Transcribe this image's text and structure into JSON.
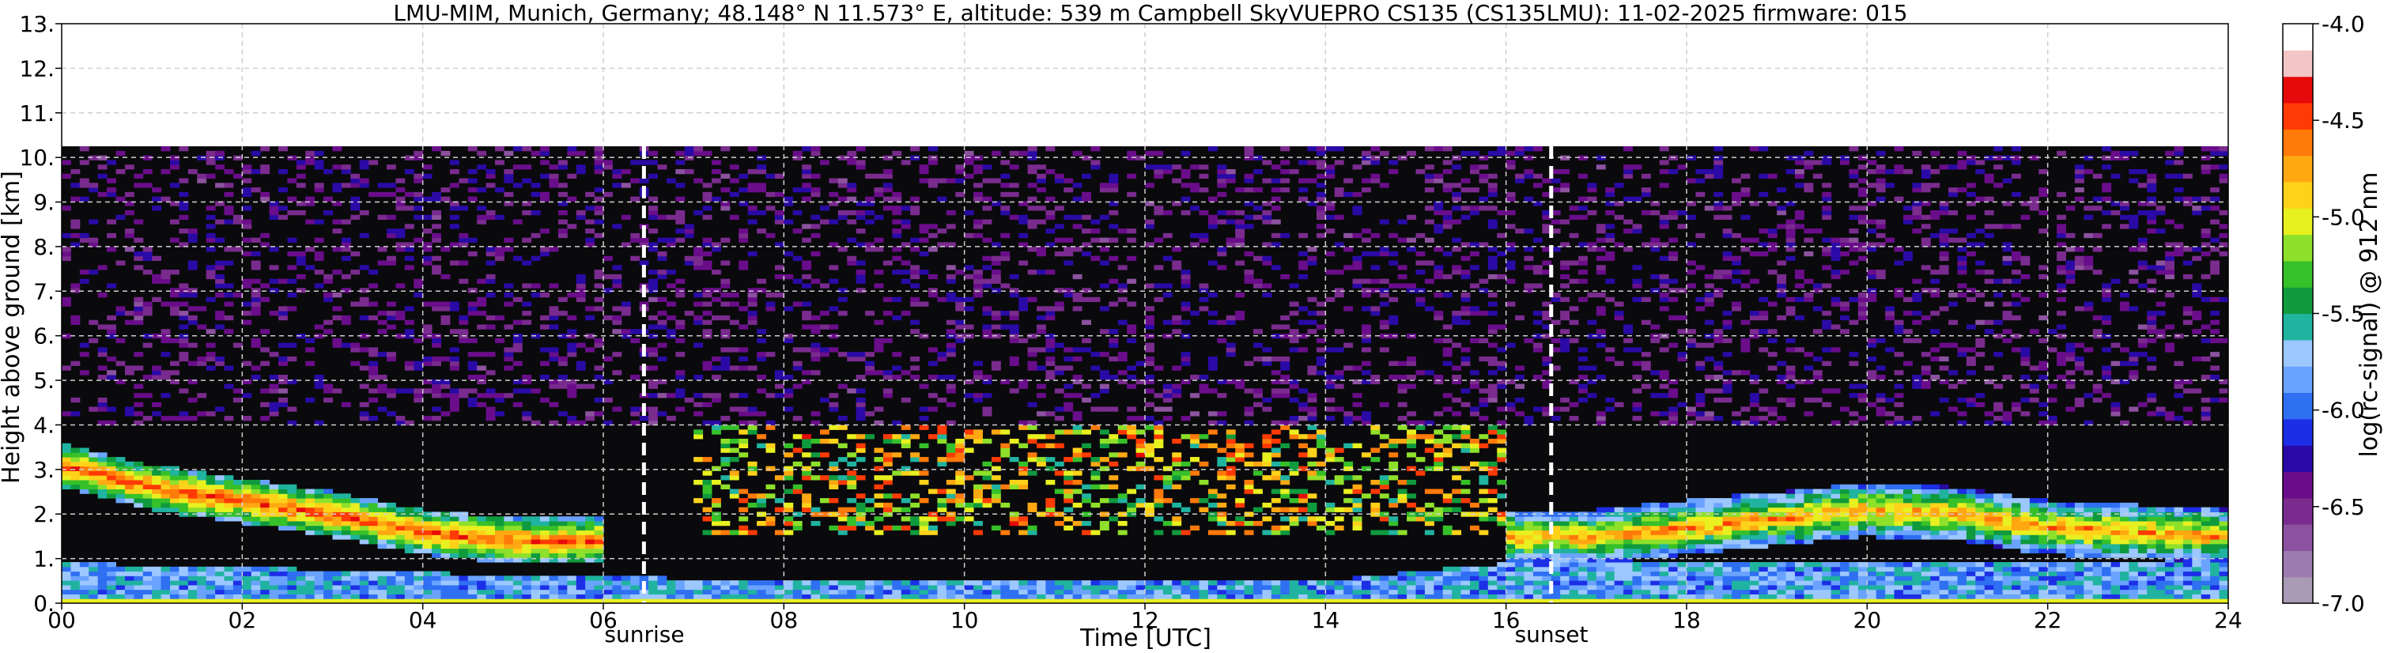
{
  "chart_data": {
    "type": "heatmap",
    "title": "LMU-MIM, Munich, Germany; 48.148° N 11.573° E, altitude: 539 m    Campbell SkyVUEPRO CS135 (CS135LMU): 11-02-2025    firmware: 015",
    "xlabel": "Time [UTC]",
    "ylabel": "Height above ground [km]",
    "colorbar_label": "log(rc-signal) @ 912 nm",
    "xlim": [
      0,
      24
    ],
    "ylim": [
      0,
      13
    ],
    "x_ticks": [
      "00",
      "02",
      "04",
      "06",
      "08",
      "10",
      "12",
      "14",
      "16",
      "18",
      "20",
      "22",
      "24"
    ],
    "y_ticks": [
      "0.",
      "1.",
      "2.",
      "3.",
      "4.",
      "5.",
      "6.",
      "7.",
      "8.",
      "9.",
      "10.",
      "11.",
      "12.",
      "13."
    ],
    "grid": true,
    "measurement_top_km": 10.25,
    "sunrise_hour": 6.45,
    "sunset_hour": 16.5,
    "sunrise_label": "sunrise",
    "sunset_label": "sunset",
    "colorbar": {
      "vmin": -7.0,
      "vmax": -4.0,
      "ticks": [
        "-4.0",
        "-4.5",
        "-5.0",
        "-5.5",
        "-6.0",
        "-6.5",
        "-7.0"
      ],
      "tick_values": [
        -4.0,
        -4.5,
        -5.0,
        -5.5,
        -6.0,
        -6.5,
        -7.0
      ],
      "colors": [
        "#a99ab5",
        "#9d7ab0",
        "#8c529f",
        "#7a2b8e",
        "#6a0d8a",
        "#2a0aa6",
        "#1c2fe6",
        "#2f6ff2",
        "#6aa3ff",
        "#9cc7ff",
        "#20b3a0",
        "#0f9a3e",
        "#36c02a",
        "#8fe02a",
        "#e8f020",
        "#ffd21a",
        "#ffa812",
        "#ff7a0a",
        "#ff3a05",
        "#e60a0a",
        "#f2c6c6",
        "#ffffff"
      ]
    },
    "layers": [
      {
        "name": "surface",
        "hours": [
          0,
          24
        ],
        "bottom_km": [
          0.0,
          0.0
        ],
        "top_km": [
          0.15,
          0.15
        ],
        "value": -5.0
      },
      {
        "name": "boundary-layer",
        "hours": [
          0,
          2,
          4,
          5,
          6,
          8,
          10,
          12,
          14,
          16,
          18,
          20,
          22,
          24
        ],
        "top_km": [
          0.9,
          0.8,
          0.7,
          0.6,
          0.6,
          0.5,
          0.5,
          0.5,
          0.5,
          0.9,
          0.9,
          0.9,
          0.9,
          0.9
        ],
        "value": -5.8
      },
      {
        "name": "elevated-cloud",
        "hours": [
          0,
          1,
          2,
          3,
          4,
          5,
          6
        ],
        "center_km": [
          3.1,
          2.6,
          2.3,
          2.0,
          1.6,
          1.4,
          1.4
        ],
        "value": -4.6
      },
      {
        "name": "evening-cloud",
        "hours": [
          16,
          17,
          18,
          19,
          20,
          21,
          22,
          23,
          24
        ],
        "center_km": [
          1.5,
          1.5,
          1.7,
          1.9,
          2.1,
          2.0,
          1.7,
          1.6,
          1.5
        ],
        "value": -4.8
      }
    ]
  }
}
